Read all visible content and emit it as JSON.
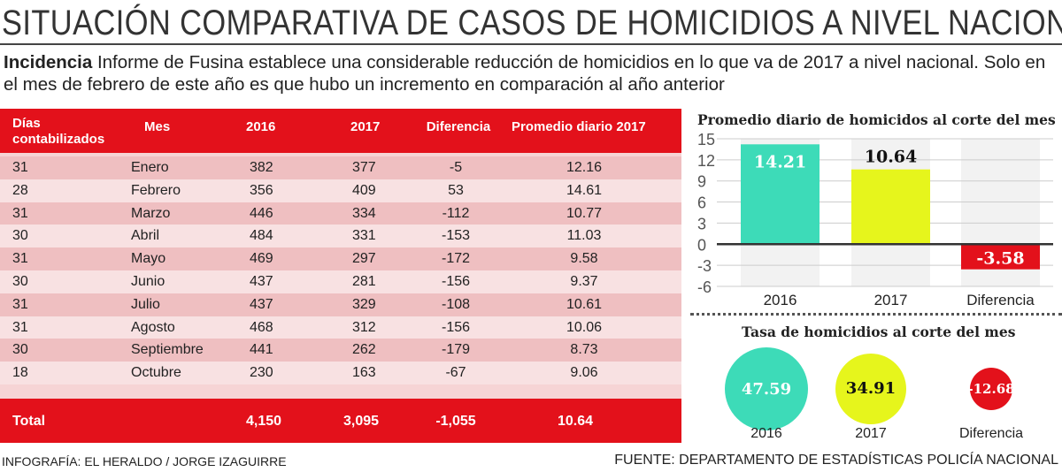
{
  "title": "SITUACIÓN COMPARATIVA DE CASOS DE HOMICIDIOS A NIVEL NACIONAL",
  "lede": {
    "kicker": "Incidencia",
    "text": " Informe de Fusina establece una considerable reducción de homicidios en lo que va de 2017 a nivel nacional. Solo en el mes de febrero de este año es que hubo un incremento en comparación al año anterior"
  },
  "table": {
    "headers": [
      "Días contabilizados",
      "Mes",
      "2016",
      "2017",
      "Diferencia",
      "Promedio diario 2017"
    ],
    "rows": [
      [
        "31",
        "Enero",
        "382",
        "377",
        "-5",
        "12.16"
      ],
      [
        "28",
        "Febrero",
        "356",
        "409",
        "53",
        "14.61"
      ],
      [
        "31",
        "Marzo",
        "446",
        "334",
        "-112",
        "10.77"
      ],
      [
        "30",
        "Abril",
        "484",
        "331",
        "-153",
        "11.03"
      ],
      [
        "31",
        "Mayo",
        "469",
        "297",
        "-172",
        "9.58"
      ],
      [
        "30",
        "Junio",
        "437",
        "281",
        "-156",
        "9.37"
      ],
      [
        "31",
        "Julio",
        "437",
        "329",
        "-108",
        "10.61"
      ],
      [
        "31",
        "Agosto",
        "468",
        "312",
        "-156",
        "10.06"
      ],
      [
        "30",
        "Septiembre",
        "441",
        "262",
        "-179",
        "8.73"
      ],
      [
        "18",
        "Octubre",
        "230",
        "163",
        "-67",
        "9.06"
      ]
    ],
    "total": [
      "Total",
      "4,150",
      "3,095",
      "-1,055",
      "10.64"
    ]
  },
  "chart_data": [
    {
      "type": "bar",
      "title": "Promedio diario de homicidos al corte del mes",
      "categories": [
        "2016",
        "2017",
        "Diferencia"
      ],
      "values": [
        14.21,
        10.64,
        -3.58
      ],
      "data_labels": [
        "14.21",
        "10.64",
        "-3.58"
      ],
      "colors": [
        "#3ddbb8",
        "#e6f51c",
        "#e3111b"
      ],
      "ylim": [
        -6,
        15
      ],
      "yticks": [
        "15",
        "12",
        "9",
        "6",
        "3",
        "0",
        "-3",
        "-6"
      ],
      "grid": true
    },
    {
      "type": "bubble",
      "title": "Tasa de homicidios al corte del mes",
      "categories": [
        "2016",
        "2017",
        "Diferencia"
      ],
      "values": [
        47.59,
        34.91,
        -12.68
      ],
      "data_labels": [
        "47.59",
        "34.91",
        "-12.68"
      ],
      "colors": [
        "#3ddbb8",
        "#e6f51c",
        "#e3111b"
      ]
    }
  ],
  "footer": {
    "credit": "INFOGRAFÍA: EL HERALDO / JORGE IZAGUIRRE",
    "source": "FUENTE: DEPARTAMENTO DE ESTADÍSTICAS POLICÍA NACIONAL"
  }
}
